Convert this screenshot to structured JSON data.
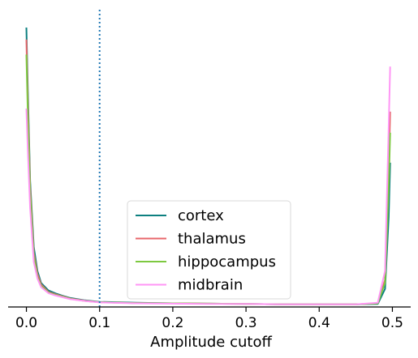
{
  "chart_data": {
    "type": "line",
    "title": "",
    "xlabel": "Amplitude cutoff",
    "ylabel": "",
    "xlim": [
      -0.025,
      0.525
    ],
    "ylim": [
      0,
      1.0
    ],
    "xticks": [
      0.0,
      0.1,
      0.2,
      0.3,
      0.4,
      0.5
    ],
    "xtick_labels": [
      "0.0",
      "0.1",
      "0.2",
      "0.3",
      "0.4",
      "0.5"
    ],
    "y_axis_visible": false,
    "grid": false,
    "legend_position": "lower center",
    "vline": {
      "x": 0.1,
      "style": "dotted",
      "color": "#1f77b4"
    },
    "series": [
      {
        "name": "cortex",
        "color": "#0d8080",
        "x": [
          0.0,
          0.002,
          0.005,
          0.01,
          0.015,
          0.02,
          0.03,
          0.04,
          0.05,
          0.06,
          0.08,
          0.1,
          0.15,
          0.2,
          0.25,
          0.3,
          0.35,
          0.4,
          0.45,
          0.48,
          0.49,
          0.495,
          0.497
        ],
        "y": [
          0.93,
          0.72,
          0.42,
          0.2,
          0.12,
          0.08,
          0.055,
          0.045,
          0.037,
          0.03,
          0.022,
          0.017,
          0.014,
          0.012,
          0.011,
          0.01,
          0.009,
          0.009,
          0.009,
          0.01,
          0.06,
          0.3,
          0.48
        ]
      },
      {
        "name": "thalamus",
        "color": "#e8676b",
        "x": [
          0.0,
          0.002,
          0.005,
          0.01,
          0.015,
          0.02,
          0.03,
          0.04,
          0.05,
          0.06,
          0.08,
          0.1,
          0.15,
          0.2,
          0.25,
          0.3,
          0.35,
          0.4,
          0.45,
          0.48,
          0.49,
          0.495,
          0.497
        ],
        "y": [
          0.89,
          0.68,
          0.4,
          0.18,
          0.11,
          0.075,
          0.05,
          0.042,
          0.035,
          0.028,
          0.021,
          0.016,
          0.013,
          0.012,
          0.011,
          0.01,
          0.009,
          0.009,
          0.009,
          0.012,
          0.09,
          0.45,
          0.65
        ]
      },
      {
        "name": "hippocampus",
        "color": "#7dc940",
        "x": [
          0.0,
          0.002,
          0.005,
          0.01,
          0.015,
          0.02,
          0.03,
          0.04,
          0.05,
          0.06,
          0.08,
          0.1,
          0.15,
          0.2,
          0.25,
          0.3,
          0.35,
          0.4,
          0.45,
          0.48,
          0.49,
          0.495,
          0.497
        ],
        "y": [
          0.84,
          0.64,
          0.38,
          0.17,
          0.1,
          0.07,
          0.048,
          0.04,
          0.034,
          0.027,
          0.02,
          0.016,
          0.013,
          0.012,
          0.011,
          0.01,
          0.009,
          0.009,
          0.009,
          0.012,
          0.08,
          0.4,
          0.58
        ]
      },
      {
        "name": "midbrain",
        "color": "#ff96f5",
        "x": [
          0.0,
          0.002,
          0.005,
          0.01,
          0.015,
          0.02,
          0.03,
          0.04,
          0.05,
          0.06,
          0.08,
          0.1,
          0.15,
          0.2,
          0.25,
          0.3,
          0.35,
          0.4,
          0.45,
          0.48,
          0.49,
          0.495,
          0.497
        ],
        "y": [
          0.66,
          0.52,
          0.33,
          0.15,
          0.095,
          0.066,
          0.046,
          0.038,
          0.032,
          0.026,
          0.02,
          0.015,
          0.012,
          0.011,
          0.01,
          0.01,
          0.009,
          0.009,
          0.009,
          0.014,
          0.12,
          0.6,
          0.8
        ]
      }
    ]
  }
}
